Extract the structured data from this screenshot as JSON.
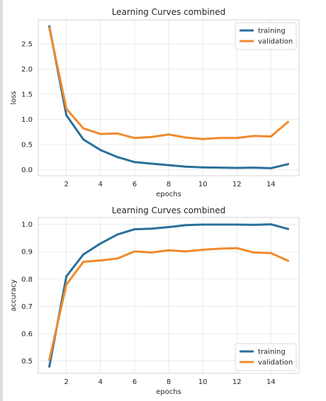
{
  "chart_data": [
    {
      "type": "line",
      "title": "Learning Curves combined",
      "xlabel": "epochs",
      "ylabel": "loss",
      "xlim": [
        0.35,
        15.65
      ],
      "ylim": [
        -0.12,
        2.98
      ],
      "xticks": [
        2,
        4,
        6,
        8,
        10,
        12,
        14
      ],
      "yticks": [
        0.0,
        0.5,
        1.0,
        1.5,
        2.0,
        2.5
      ],
      "ytick_labels": [
        "0.0",
        "0.5",
        "1.0",
        "1.5",
        "2.0",
        "2.5"
      ],
      "grid": true,
      "legend_position": "top-right",
      "x": [
        1,
        2,
        3,
        4,
        5,
        6,
        7,
        8,
        9,
        10,
        11,
        12,
        13,
        14,
        15
      ],
      "series": [
        {
          "name": "training",
          "color": "#2a6f9b",
          "values": [
            2.85,
            1.08,
            0.6,
            0.39,
            0.25,
            0.15,
            0.12,
            0.09,
            0.06,
            0.045,
            0.04,
            0.035,
            0.04,
            0.03,
            0.11
          ]
        },
        {
          "name": "validation",
          "color": "#f08a2c",
          "values": [
            2.82,
            1.21,
            0.82,
            0.71,
            0.72,
            0.63,
            0.65,
            0.7,
            0.64,
            0.61,
            0.63,
            0.63,
            0.67,
            0.66,
            0.95
          ]
        }
      ]
    },
    {
      "type": "line",
      "title": "Learning Curves combined",
      "xlabel": "epochs",
      "ylabel": "accuracy",
      "xlim": [
        0.35,
        15.65
      ],
      "ylim": [
        0.455,
        1.025
      ],
      "xticks": [
        2,
        4,
        6,
        8,
        10,
        12,
        14
      ],
      "yticks": [
        0.5,
        0.6,
        0.7,
        0.8,
        0.9,
        1.0
      ],
      "ytick_labels": [
        "0.5",
        "0.6",
        "0.7",
        "0.8",
        "0.9",
        "1.0"
      ],
      "grid": true,
      "legend_position": "bottom-right",
      "x": [
        1,
        2,
        3,
        4,
        5,
        6,
        7,
        8,
        9,
        10,
        11,
        12,
        13,
        14,
        15
      ],
      "series": [
        {
          "name": "training",
          "color": "#2a6f9b",
          "values": [
            0.48,
            0.81,
            0.89,
            0.93,
            0.963,
            0.982,
            0.984,
            0.99,
            0.997,
            0.999,
            0.999,
            0.999,
            0.998,
            1.0,
            0.983
          ]
        },
        {
          "name": "validation",
          "color": "#f08a2c",
          "values": [
            0.505,
            0.78,
            0.863,
            0.868,
            0.875,
            0.901,
            0.897,
            0.905,
            0.901,
            0.907,
            0.911,
            0.913,
            0.897,
            0.895,
            0.867
          ]
        }
      ]
    }
  ]
}
